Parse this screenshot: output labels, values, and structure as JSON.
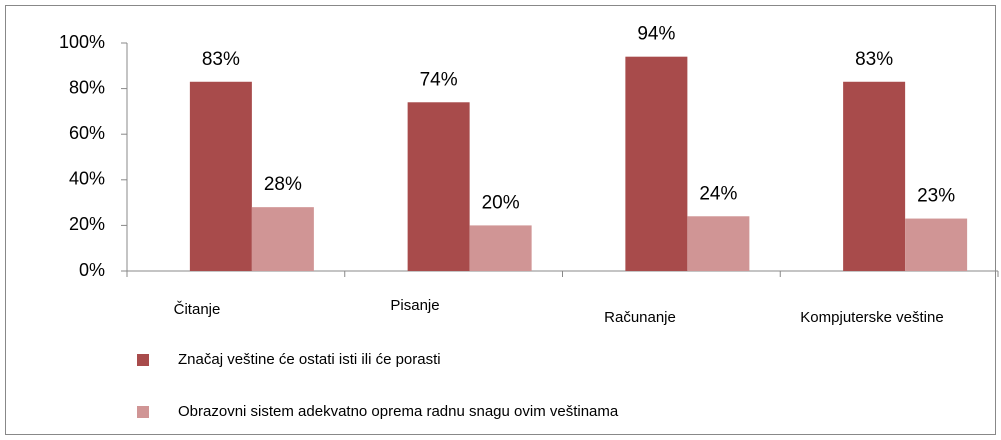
{
  "chart_data": {
    "type": "bar",
    "categories": [
      "Čitanje",
      "Pisanje",
      "Računanje",
      "Kompjuterske veštine"
    ],
    "series": [
      {
        "name": "Značaj veštine će ostati isti ili će porasti",
        "color": "#a84b4b",
        "values": [
          83,
          74,
          94,
          83
        ],
        "value_labels": [
          "83%",
          "74%",
          "94%",
          "83%"
        ]
      },
      {
        "name": "Obrazovni sistem adekvatno oprema radnu snagu ovim veštinama",
        "color": "#d09595",
        "values": [
          28,
          20,
          24,
          23
        ],
        "value_labels": [
          "28%",
          "20%",
          "24%",
          "23%"
        ]
      }
    ],
    "ylim": [
      0,
      100
    ],
    "yticks": [
      {
        "value": 0,
        "label": "0%"
      },
      {
        "value": 20,
        "label": "20%"
      },
      {
        "value": 40,
        "label": "40%"
      },
      {
        "value": 60,
        "label": "60%"
      },
      {
        "value": 80,
        "label": "80%"
      },
      {
        "value": 100,
        "label": "100%"
      }
    ],
    "grid": false
  }
}
